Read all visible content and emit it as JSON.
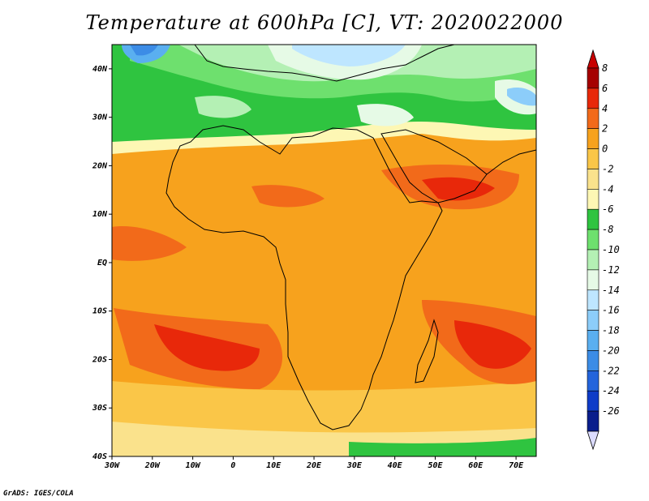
{
  "title": "Temperature at 600hPa [C], VT: 2020022000",
  "credit": "GrADS: IGES/COLA",
  "map": {
    "lon_range": [
      -30,
      75
    ],
    "lat_range": [
      -40,
      45
    ],
    "lat_ticks": [
      {
        "value": 40,
        "label": "40N"
      },
      {
        "value": 30,
        "label": "30N"
      },
      {
        "value": 20,
        "label": "20N"
      },
      {
        "value": 10,
        "label": "10N"
      },
      {
        "value": 0,
        "label": "EQ"
      },
      {
        "value": -10,
        "label": "10S"
      },
      {
        "value": -20,
        "label": "20S"
      },
      {
        "value": -30,
        "label": "30S"
      },
      {
        "value": -40,
        "label": "40S"
      }
    ],
    "lon_ticks": [
      {
        "value": -30,
        "label": "30W"
      },
      {
        "value": -20,
        "label": "20W"
      },
      {
        "value": -10,
        "label": "10W"
      },
      {
        "value": 0,
        "label": "0"
      },
      {
        "value": 10,
        "label": "10E"
      },
      {
        "value": 20,
        "label": "20E"
      },
      {
        "value": 30,
        "label": "30E"
      },
      {
        "value": 40,
        "label": "40E"
      },
      {
        "value": 50,
        "label": "50E"
      },
      {
        "value": 60,
        "label": "60E"
      },
      {
        "value": 70,
        "label": "70E"
      }
    ]
  },
  "colorbar": {
    "levels": [
      {
        "label": "8",
        "color": "#a50000"
      },
      {
        "label": "6",
        "color": "#e8280a"
      },
      {
        "label": "4",
        "color": "#f26a1a"
      },
      {
        "label": "2",
        "color": "#f7a21d"
      },
      {
        "label": "0",
        "color": "#fac648"
      },
      {
        "label": "-2",
        "color": "#fae28c"
      },
      {
        "label": "-4",
        "color": "#fdf7b4"
      },
      {
        "label": "-6",
        "color": "#2fc440"
      },
      {
        "label": "-8",
        "color": "#6ee06e"
      },
      {
        "label": "-10",
        "color": "#b4f0b4"
      },
      {
        "label": "-12",
        "color": "#e6fae6"
      },
      {
        "label": "-14",
        "color": "#bee6ff"
      },
      {
        "label": "-16",
        "color": "#8ccdfa"
      },
      {
        "label": "-18",
        "color": "#5aaff0"
      },
      {
        "label": "-20",
        "color": "#3c8ce6"
      },
      {
        "label": "-22",
        "color": "#2364dc"
      },
      {
        "label": "-24",
        "color": "#0f3cc8"
      },
      {
        "label": "-26",
        "color": "#0a1e8c"
      }
    ],
    "top_arrow_color": "#c80000",
    "bottom_arrow_color": "#dcdcff"
  }
}
